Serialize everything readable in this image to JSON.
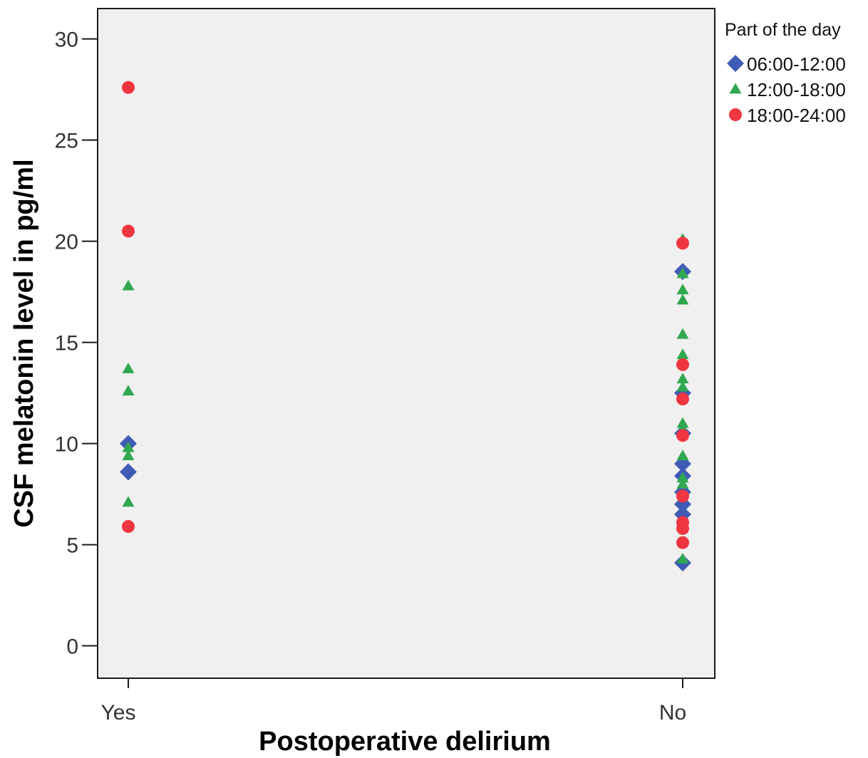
{
  "chart_data": {
    "type": "scatter",
    "title": "",
    "xlabel": "Postoperative delirium",
    "ylabel": "CSF melatonin level in pg/ml",
    "categories": [
      "Yes",
      "No"
    ],
    "ylim": [
      -1.6,
      31.5
    ],
    "yticks": [
      0,
      5,
      10,
      15,
      20,
      25,
      30
    ],
    "grid": false,
    "plot_background": "#f0f0f0",
    "legend": {
      "title": "Part of the day",
      "position": "right-top"
    },
    "series": [
      {
        "name": "06:00-12:00",
        "marker": "diamond",
        "color": "#3f5bb5",
        "points": [
          {
            "x": "Yes",
            "y": 10.0
          },
          {
            "x": "Yes",
            "y": 8.6
          },
          {
            "x": "No",
            "y": 18.5
          },
          {
            "x": "No",
            "y": 12.5
          },
          {
            "x": "No",
            "y": 10.5
          },
          {
            "x": "No",
            "y": 9.0
          },
          {
            "x": "No",
            "y": 8.4
          },
          {
            "x": "No",
            "y": 7.6
          },
          {
            "x": "No",
            "y": 7.0
          },
          {
            "x": "No",
            "y": 6.5
          },
          {
            "x": "No",
            "y": 4.1
          }
        ]
      },
      {
        "name": "12:00-18:00",
        "marker": "triangle",
        "color": "#2fa84f",
        "points": [
          {
            "x": "Yes",
            "y": 17.8
          },
          {
            "x": "Yes",
            "y": 13.7
          },
          {
            "x": "Yes",
            "y": 12.6
          },
          {
            "x": "Yes",
            "y": 9.8
          },
          {
            "x": "Yes",
            "y": 9.4
          },
          {
            "x": "Yes",
            "y": 7.1
          },
          {
            "x": "No",
            "y": 20.1
          },
          {
            "x": "No",
            "y": 18.4
          },
          {
            "x": "No",
            "y": 17.6
          },
          {
            "x": "No",
            "y": 17.1
          },
          {
            "x": "No",
            "y": 15.4
          },
          {
            "x": "No",
            "y": 14.4
          },
          {
            "x": "No",
            "y": 13.2
          },
          {
            "x": "No",
            "y": 12.8
          },
          {
            "x": "No",
            "y": 11.0
          },
          {
            "x": "No",
            "y": 10.7
          },
          {
            "x": "No",
            "y": 9.4
          },
          {
            "x": "No",
            "y": 8.3
          },
          {
            "x": "No",
            "y": 8.0
          },
          {
            "x": "No",
            "y": 4.3
          }
        ]
      },
      {
        "name": "18:00-24:00",
        "marker": "circle",
        "color": "#ef3540",
        "points": [
          {
            "x": "Yes",
            "y": 27.6
          },
          {
            "x": "Yes",
            "y": 20.5
          },
          {
            "x": "Yes",
            "y": 5.9
          },
          {
            "x": "No",
            "y": 19.9
          },
          {
            "x": "No",
            "y": 13.9
          },
          {
            "x": "No",
            "y": 12.2
          },
          {
            "x": "No",
            "y": 10.4
          },
          {
            "x": "No",
            "y": 7.4
          },
          {
            "x": "No",
            "y": 6.1
          },
          {
            "x": "No",
            "y": 5.8
          },
          {
            "x": "No",
            "y": 5.1
          }
        ]
      }
    ]
  }
}
